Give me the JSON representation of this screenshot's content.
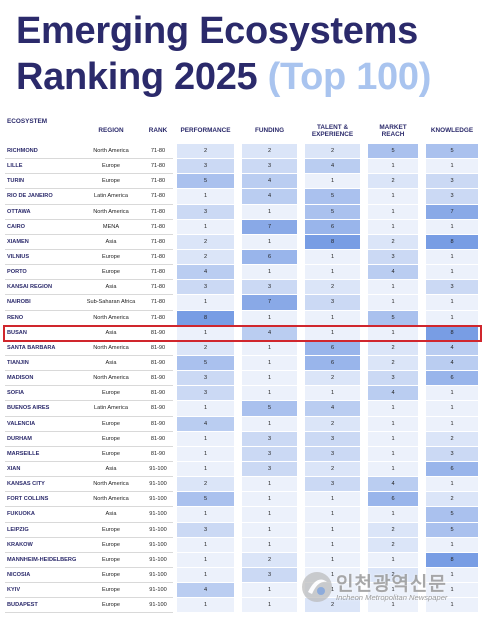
{
  "header": {
    "title_line1": "Emerging Ecosystems",
    "title_line2": "Ranking 2025",
    "title_highlight": "(Top 100)"
  },
  "table": {
    "columns": [
      [
        "ECOSYSTEM"
      ],
      [
        "REGION"
      ],
      [
        "RANK"
      ],
      [
        "PERFORMANCE"
      ],
      [
        "FUNDING"
      ],
      [
        "TALENT &",
        "EXPERIENCE"
      ],
      [
        "MARKET",
        "REACH"
      ],
      [
        "KNOWLEDGE"
      ]
    ],
    "highlighted_row": 12,
    "rows": [
      [
        "RICHMOND",
        "North America",
        "71-80",
        2,
        2,
        2,
        5,
        5
      ],
      [
        "LILLE",
        "Europe",
        "71-80",
        3,
        3,
        4,
        1,
        1
      ],
      [
        "TURIN",
        "Europe",
        "71-80",
        5,
        4,
        1,
        2,
        3
      ],
      [
        "RIO DE JANEIRO",
        "Latin America",
        "71-80",
        1,
        4,
        5,
        1,
        3
      ],
      [
        "OTTAWA",
        "North America",
        "71-80",
        3,
        1,
        5,
        1,
        7
      ],
      [
        "CAIRO",
        "MENA",
        "71-80",
        1,
        7,
        6,
        1,
        1
      ],
      [
        "XIAMEN",
        "Asia",
        "71-80",
        2,
        1,
        8,
        2,
        8
      ],
      [
        "VILNIUS",
        "Europe",
        "71-80",
        2,
        6,
        1,
        3,
        1
      ],
      [
        "PORTO",
        "Europe",
        "71-80",
        4,
        1,
        1,
        4,
        1
      ],
      [
        "KANSAI REGION",
        "Asia",
        "71-80",
        3,
        3,
        2,
        1,
        3
      ],
      [
        "NAIROBI",
        "Sub-Saharan Africa",
        "71-80",
        1,
        7,
        3,
        1,
        1
      ],
      [
        "RENO",
        "North America",
        "71-80",
        8,
        1,
        1,
        5,
        1
      ],
      [
        "BUSAN",
        "Asia",
        "81-90",
        1,
        4,
        1,
        1,
        8
      ],
      [
        "SANTA BARBARA",
        "North America",
        "81-90",
        2,
        1,
        6,
        2,
        4
      ],
      [
        "TIANJIN",
        "Asia",
        "81-90",
        5,
        1,
        6,
        2,
        4
      ],
      [
        "MADISON",
        "North America",
        "81-90",
        3,
        1,
        2,
        3,
        6
      ],
      [
        "SOFIA",
        "Europe",
        "81-90",
        3,
        1,
        1,
        4,
        1
      ],
      [
        "BUENOS AIRES",
        "Latin America",
        "81-90",
        1,
        5,
        4,
        1,
        1
      ],
      [
        "VALENCIA",
        "Europe",
        "81-90",
        4,
        1,
        2,
        1,
        1
      ],
      [
        "DURHAM",
        "Europe",
        "81-90",
        1,
        3,
        3,
        1,
        2
      ],
      [
        "MARSEILLE",
        "Europe",
        "81-90",
        1,
        3,
        3,
        1,
        3
      ],
      [
        "XIAN",
        "Asia",
        "91-100",
        1,
        3,
        2,
        1,
        6
      ],
      [
        "KANSAS CITY",
        "North America",
        "91-100",
        2,
        1,
        3,
        4,
        1
      ],
      [
        "FORT COLLINS",
        "North America",
        "91-100",
        5,
        1,
        1,
        6,
        2
      ],
      [
        "FUKUOKA",
        "Asia",
        "91-100",
        1,
        1,
        1,
        1,
        5
      ],
      [
        "LEIPZIG",
        "Europe",
        "91-100",
        3,
        1,
        1,
        2,
        5
      ],
      [
        "KRAKOW",
        "Europe",
        "91-100",
        1,
        1,
        1,
        2,
        1
      ],
      [
        "MANNHEIM-HEIDELBERG",
        "Europe",
        "91-100",
        1,
        2,
        1,
        1,
        8
      ],
      [
        "NICOSIA",
        "Europe",
        "91-100",
        1,
        3,
        1,
        2,
        1
      ],
      [
        "KYIV",
        "Europe",
        "91-100",
        4,
        1,
        1,
        1,
        1
      ],
      [
        "BUDAPEST",
        "Europe",
        "91-100",
        1,
        1,
        2,
        1,
        1
      ]
    ]
  },
  "watermark": {
    "name_ko": "인천광역신문",
    "name_en": "Incheon Metropolitan Newspaper"
  }
}
